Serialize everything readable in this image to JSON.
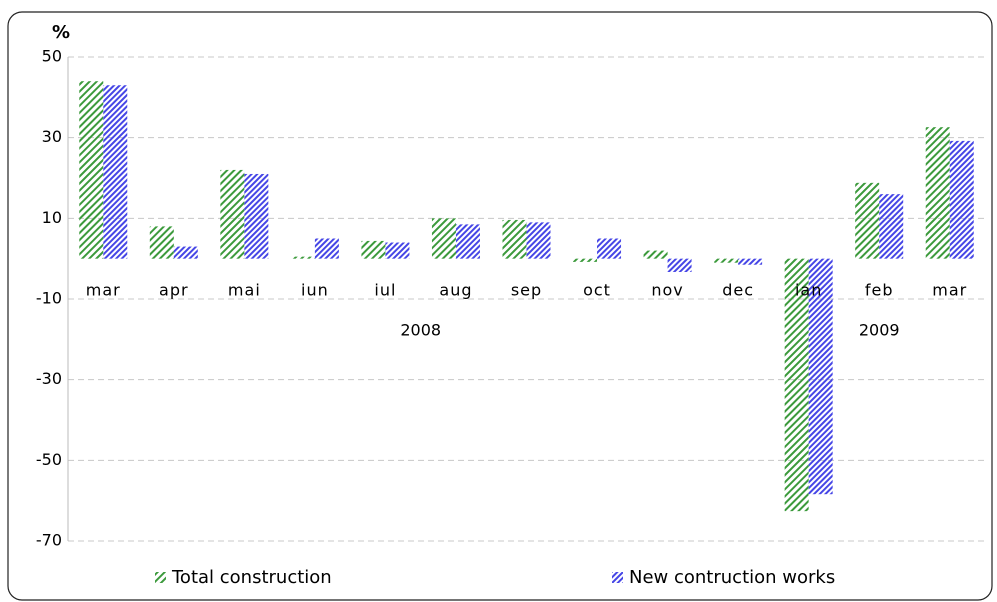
{
  "chart_data": {
    "type": "bar",
    "y_label": "%",
    "categories": [
      "mar",
      "apr",
      "mai",
      "iun",
      "iul",
      "aug",
      "sep",
      "oct",
      "nov",
      "dec",
      "ian",
      "feb",
      "mar"
    ],
    "x_groups": [
      {
        "label": "2008",
        "span": 10
      },
      {
        "label": "2009",
        "span": 3
      }
    ],
    "series": [
      {
        "name": "Total construction",
        "color": "#3c9a3c",
        "values": [
          44,
          8,
          22,
          0.5,
          4.4,
          10,
          9.6,
          -0.8,
          2,
          -1,
          -62.6,
          18.8,
          32.6
        ]
      },
      {
        "name": "New contruction works",
        "color": "#4646e6",
        "values": [
          43,
          3,
          21,
          5,
          4,
          8.5,
          9,
          5,
          -3.3,
          -1.5,
          -58.4,
          16,
          29.2
        ]
      }
    ],
    "ylim": [
      -70,
      50
    ],
    "yticks": [
      -70,
      -50,
      -30,
      -10,
      10,
      30,
      50
    ],
    "grid": true,
    "legend": "bottom"
  }
}
